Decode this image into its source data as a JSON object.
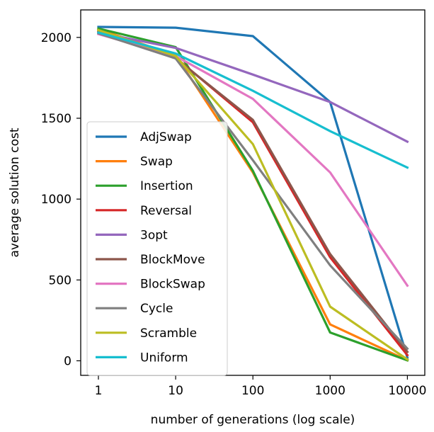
{
  "chart_data": {
    "type": "line",
    "xscale": "log",
    "x": [
      1,
      10,
      100,
      1000,
      10000
    ],
    "xticks": [
      "1",
      "10",
      "100",
      "1000",
      "10000"
    ],
    "yticks": [
      "0",
      "500",
      "1000",
      "1500",
      "2000"
    ],
    "ytick_values": [
      0,
      500,
      1000,
      1500,
      2000
    ],
    "xlabel": "number of generations (log scale)",
    "ylabel": "average solution cost",
    "xlim": [
      0.59,
      16800
    ],
    "ylim": [
      -90,
      2170
    ],
    "grid": false,
    "legend_position": "lower-left",
    "series": [
      {
        "name": "AdjSwap",
        "color": "#1f77b4",
        "values": [
          2065,
          2060,
          2008,
          1600,
          20
        ]
      },
      {
        "name": "Swap",
        "color": "#ff7f0e",
        "values": [
          2050,
          1890,
          1165,
          225,
          3
        ]
      },
      {
        "name": "Insertion",
        "color": "#2ca02c",
        "values": [
          2055,
          1940,
          1175,
          175,
          3
        ]
      },
      {
        "name": "Reversal",
        "color": "#d62728",
        "values": [
          2040,
          1875,
          1475,
          640,
          35
        ]
      },
      {
        "name": "3opt",
        "color": "#9467bd",
        "values": [
          2030,
          1935,
          1770,
          1600,
          1355
        ]
      },
      {
        "name": "BlockMove",
        "color": "#8c564b",
        "values": [
          2035,
          1870,
          1490,
          660,
          55
        ]
      },
      {
        "name": "BlockSwap",
        "color": "#e377c2",
        "values": [
          2020,
          1885,
          1620,
          1165,
          465
        ]
      },
      {
        "name": "Cycle",
        "color": "#7f7f7f",
        "values": [
          2025,
          1870,
          1240,
          590,
          75
        ]
      },
      {
        "name": "Scramble",
        "color": "#bcbd22",
        "values": [
          2045,
          1885,
          1340,
          335,
          8
        ]
      },
      {
        "name": "Uniform",
        "color": "#17becf",
        "values": [
          2030,
          1900,
          1670,
          1420,
          1195
        ]
      }
    ]
  }
}
